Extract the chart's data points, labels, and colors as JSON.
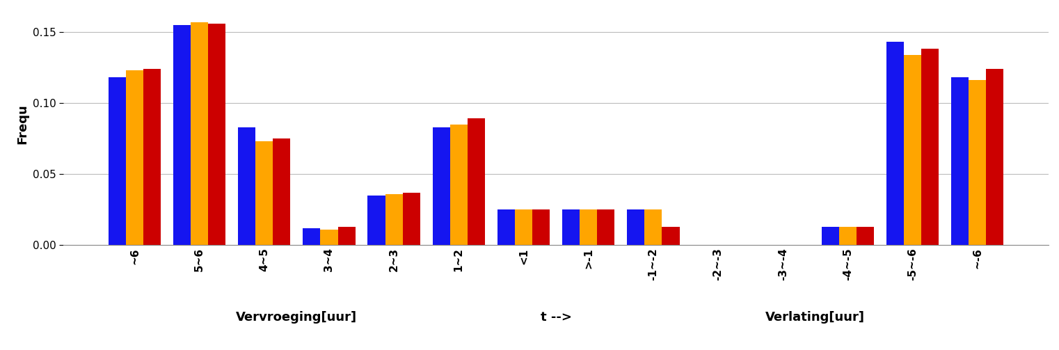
{
  "categories": [
    "~6",
    "5~6",
    "4~5",
    "3~4",
    "2~3",
    "1~2",
    "<1",
    ">-1",
    "-1~-2",
    "-2~-3",
    "-3~-4",
    "-4~-5",
    "-5~-6",
    "~-6"
  ],
  "series": {
    "24h": [
      0.118,
      0.155,
      0.083,
      0.012,
      0.035,
      0.083,
      0.025,
      0.025,
      0.025,
      0.0,
      0.0,
      0.013,
      0.143,
      0.118
    ],
    "36h": [
      0.123,
      0.157,
      0.073,
      0.011,
      0.036,
      0.085,
      0.025,
      0.025,
      0.025,
      0.0,
      0.0,
      0.013,
      0.134,
      0.116
    ],
    "48h": [
      0.124,
      0.156,
      0.075,
      0.013,
      0.037,
      0.089,
      0.025,
      0.025,
      0.013,
      0.0,
      0.0,
      0.013,
      0.138,
      0.124
    ]
  },
  "colors": {
    "24h": "#1515f0",
    "36h": "#ffa500",
    "48h": "#cc0000"
  },
  "ylabel": "Frequ",
  "xlabel_left": "Vervroeging[uur]",
  "xlabel_center": "t -->",
  "xlabel_right": "Verlating[uur]",
  "xlabel_left_xpos": 2.5,
  "xlabel_center_xpos": 6.5,
  "xlabel_right_xpos": 10.5,
  "ylim": [
    0,
    0.17
  ],
  "yticks": [
    0,
    0.05,
    0.1,
    0.15
  ],
  "bar_width": 0.27,
  "background_color": "#ffffff",
  "grid_color": "#bbbbbb",
  "tick_fontsize": 11,
  "ylabel_fontsize": 13,
  "xlabel_fontsize": 13
}
